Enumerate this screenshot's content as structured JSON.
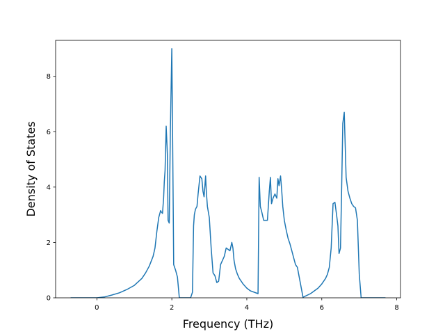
{
  "chart_data": {
    "type": "line",
    "title": "",
    "xlabel": "Frequency (THz)",
    "ylabel": "Density of States",
    "xlim": [
      -1.1,
      8.1
    ],
    "ylim": [
      0,
      9.3
    ],
    "xticks": [
      0,
      2,
      4,
      6,
      8
    ],
    "yticks": [
      0,
      2,
      4,
      6,
      8
    ],
    "grid": false,
    "legend": "none",
    "series": [
      {
        "color": "#1f77b4",
        "x": [
          -0.7,
          0.0,
          0.2,
          0.4,
          0.6,
          0.8,
          1.0,
          1.2,
          1.3,
          1.4,
          1.5,
          1.55,
          1.6,
          1.65,
          1.7,
          1.72,
          1.75,
          1.78,
          1.8,
          1.82,
          1.85,
          1.88,
          1.9,
          1.93,
          1.96,
          2.0,
          2.02,
          2.05,
          2.1,
          2.15,
          2.2,
          2.5,
          2.55,
          2.58,
          2.6,
          2.63,
          2.67,
          2.7,
          2.75,
          2.8,
          2.83,
          2.86,
          2.9,
          2.92,
          2.95,
          3.0,
          3.05,
          3.1,
          3.15,
          3.2,
          3.25,
          3.3,
          3.35,
          3.4,
          3.45,
          3.5,
          3.55,
          3.6,
          3.63,
          3.66,
          3.7,
          3.75,
          3.8,
          3.9,
          4.0,
          4.1,
          4.2,
          4.3,
          4.33,
          4.36,
          4.4,
          4.45,
          4.5,
          4.55,
          4.6,
          4.63,
          4.66,
          4.7,
          4.75,
          4.8,
          4.83,
          4.86,
          4.9,
          4.93,
          4.96,
          5.0,
          5.05,
          5.1,
          5.15,
          5.2,
          5.25,
          5.3,
          5.35,
          5.5,
          5.7,
          5.9,
          6.0,
          6.1,
          6.15,
          6.2,
          6.25,
          6.3,
          6.35,
          6.4,
          6.43,
          6.46,
          6.5,
          6.53,
          6.56,
          6.6,
          6.65,
          6.7,
          6.75,
          6.8,
          6.85,
          6.9,
          6.95,
          7.0,
          7.05,
          7.7
        ],
        "y": [
          0.0,
          0.0,
          0.03,
          0.1,
          0.18,
          0.3,
          0.45,
          0.7,
          0.9,
          1.15,
          1.5,
          1.8,
          2.4,
          2.9,
          3.15,
          3.1,
          3.05,
          3.6,
          4.2,
          4.6,
          6.2,
          5.2,
          2.8,
          2.7,
          6.0,
          9.0,
          6.0,
          1.2,
          1.0,
          0.75,
          0.0,
          0.0,
          0.2,
          2.6,
          3.0,
          3.2,
          3.3,
          3.75,
          4.4,
          4.3,
          3.85,
          3.65,
          4.4,
          3.85,
          3.3,
          2.9,
          1.8,
          0.9,
          0.8,
          0.55,
          0.6,
          1.2,
          1.35,
          1.5,
          1.8,
          1.75,
          1.7,
          2.0,
          1.8,
          1.35,
          1.05,
          0.85,
          0.7,
          0.5,
          0.35,
          0.25,
          0.2,
          0.15,
          4.35,
          3.3,
          3.1,
          2.8,
          2.8,
          2.8,
          3.85,
          4.35,
          3.4,
          3.6,
          3.75,
          3.6,
          4.3,
          4.05,
          4.4,
          3.9,
          3.3,
          2.8,
          2.45,
          2.15,
          1.95,
          1.7,
          1.45,
          1.2,
          1.1,
          0.02,
          0.15,
          0.35,
          0.5,
          0.7,
          0.85,
          1.1,
          1.8,
          3.4,
          3.45,
          2.95,
          2.6,
          1.6,
          1.8,
          4.0,
          6.3,
          6.7,
          4.35,
          3.85,
          3.6,
          3.4,
          3.3,
          3.25,
          2.8,
          0.85,
          0.0,
          0.0
        ]
      }
    ]
  }
}
